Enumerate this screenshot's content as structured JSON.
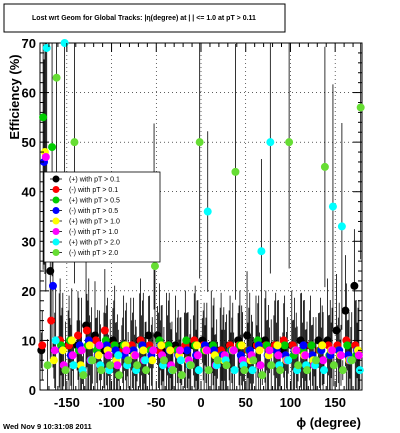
{
  "chart_data": {
    "type": "scatter",
    "title": "Lost wrt Geom for Global Tracks: |η(degree) at | | <= 1.0 at pT > 0.11",
    "xlabel": "ϕ (degree)",
    "ylabel": "Efficiency (%)",
    "xlim": [
      -180,
      180
    ],
    "ylim": [
      0,
      70
    ],
    "xticks": [
      -150,
      -100,
      -50,
      0,
      50,
      100,
      150
    ],
    "yticks": [
      0,
      10,
      20,
      30,
      40,
      50,
      60,
      70
    ],
    "x_tick_labels": [
      "-150",
      "-100",
      "-50",
      "0",
      "50",
      "100",
      "150"
    ],
    "y_tick_labels": [
      "0",
      "10",
      "20",
      "30",
      "40",
      "50",
      "60",
      "70"
    ],
    "grid": true,
    "legend_position": "left",
    "series": [
      {
        "name": "(+) with pT > 0.1",
        "color": "#000000",
        "x": [
          -175,
          -165,
          -155,
          -145,
          -135,
          -125,
          -115,
          -105,
          -95,
          -85,
          -75,
          -65,
          -55,
          -45,
          -35,
          -25,
          -15,
          -5,
          5,
          15,
          25,
          35,
          45,
          55,
          65,
          75,
          85,
          95,
          105,
          115,
          125,
          135,
          145,
          155,
          165,
          175
        ],
        "y": [
          8,
          24,
          10,
          9,
          9,
          13,
          11,
          8,
          10,
          9,
          8,
          10,
          11,
          11,
          8,
          9,
          8,
          9,
          10,
          9,
          8,
          9,
          10,
          11,
          9,
          10,
          9,
          8,
          9,
          10,
          9,
          10,
          10,
          12,
          16,
          21
        ]
      },
      {
        "name": "(-) with pT > 0.1",
        "color": "#ff0000",
        "x": [
          -175,
          -165,
          -155,
          -145,
          -135,
          -125,
          -115,
          -105,
          -95,
          -85,
          -75,
          -65,
          -55,
          -45,
          -35,
          -25,
          -15,
          -5,
          5,
          15,
          25,
          35,
          45,
          55,
          65,
          75,
          85,
          95,
          105,
          115,
          125,
          135,
          145,
          155,
          165,
          175
        ],
        "y": [
          9,
          14,
          10,
          9,
          11,
          12,
          10,
          12,
          9,
          8,
          9,
          10,
          9,
          8,
          9,
          8,
          9,
          10,
          9,
          8,
          8,
          9,
          9,
          8,
          9,
          9,
          9,
          10,
          9,
          8,
          9,
          8,
          9,
          9,
          10,
          9
        ]
      },
      {
        "name": "(+) with pT > 0.5",
        "color": "#00cc00",
        "x": [
          -175,
          -165,
          -155,
          -145,
          -135,
          -125,
          -115,
          -105,
          -95,
          -85,
          -75,
          -65,
          -55,
          -45,
          -35,
          -25,
          -15,
          -5,
          5,
          15,
          25,
          35,
          45,
          55,
          65,
          75,
          85,
          95,
          105,
          115,
          125,
          135,
          145,
          155,
          165,
          175
        ],
        "y": [
          55,
          49,
          9,
          10,
          8,
          9,
          8,
          10,
          9,
          9,
          8,
          9,
          8,
          10,
          9,
          8,
          10,
          9,
          8,
          9,
          7,
          8,
          9,
          8,
          10,
          9,
          8,
          9,
          7,
          8,
          9,
          8,
          7,
          8,
          9,
          7
        ]
      },
      {
        "name": "(-) with pT > 0.5",
        "color": "#0000ff",
        "x": [
          -175,
          -165,
          -155,
          -145,
          -135,
          -125,
          -115,
          -105,
          -95,
          -85,
          -75,
          -65,
          -55,
          -45,
          -35,
          -25,
          -15,
          -5,
          5,
          15,
          25,
          35,
          45,
          55,
          65,
          75,
          85,
          95,
          105,
          115,
          125,
          135,
          145,
          155,
          165,
          175
        ],
        "y": [
          46,
          21,
          8,
          7,
          9,
          10,
          7,
          9,
          8,
          7,
          8,
          9,
          7,
          9,
          8,
          7,
          8,
          7,
          9,
          8,
          7,
          8,
          7,
          8,
          9,
          7,
          8,
          7,
          8,
          9,
          7,
          8,
          7,
          8,
          7,
          8
        ]
      },
      {
        "name": "(+) with pT > 1.0",
        "color": "#ffff00",
        "x": [
          -175,
          -165,
          -155,
          -145,
          -135,
          -125,
          -115,
          -105,
          -95,
          -85,
          -75,
          -65,
          -55,
          -45,
          -35,
          -25,
          -15,
          -5,
          5,
          15,
          25,
          35,
          45,
          55,
          65,
          75,
          85,
          95,
          105,
          115,
          125,
          135,
          145,
          155,
          165,
          175
        ],
        "y": [
          48,
          6,
          8,
          10,
          5,
          9,
          7,
          8,
          6,
          9,
          7,
          8,
          6,
          9,
          8,
          7,
          6,
          9,
          8,
          7,
          6,
          8,
          9,
          6,
          8,
          7,
          9,
          6,
          8,
          7,
          6,
          9,
          8,
          7,
          6,
          8
        ]
      },
      {
        "name": "(-) with pT > 1.0",
        "color": "#ff00ff",
        "x": [
          -175,
          -165,
          -155,
          -145,
          -135,
          -125,
          -115,
          -105,
          -95,
          -85,
          -75,
          -65,
          -55,
          -45,
          -35,
          -25,
          -15,
          -5,
          5,
          15,
          25,
          35,
          45,
          55,
          65,
          75,
          85,
          95,
          105,
          115,
          125,
          135,
          145,
          155,
          165,
          175
        ],
        "y": [
          47,
          8,
          5,
          7,
          8,
          6,
          9,
          7,
          5,
          8,
          7,
          6,
          8,
          7,
          5,
          8,
          6,
          7,
          8,
          5,
          7,
          8,
          6,
          7,
          5,
          8,
          7,
          6,
          8,
          7,
          5,
          6,
          8,
          7,
          6,
          7
        ]
      },
      {
        "name": "(+) with pT > 2.0",
        "color": "#00ffff",
        "x": [
          -175,
          -165,
          -155,
          -145,
          -135,
          -125,
          -115,
          -105,
          -95,
          -85,
          -75,
          -65,
          -55,
          -45,
          -35,
          -25,
          -15,
          -5,
          5,
          15,
          25,
          35,
          45,
          55,
          65,
          75,
          85,
          95,
          105,
          115,
          125,
          135,
          145,
          155,
          165,
          175
        ],
        "y": [
          69,
          10,
          70,
          5,
          4,
          6,
          5,
          4,
          7,
          5,
          4,
          6,
          35,
          5,
          4,
          6,
          5,
          4,
          36,
          5,
          6,
          4,
          5,
          4,
          28,
          50,
          5,
          6,
          4,
          5,
          5,
          4,
          37,
          33,
          6,
          4
        ]
      },
      {
        "name": "(-) with pT > 2.0",
        "color": "#66dd33",
        "x": [
          -175,
          -165,
          -155,
          -145,
          -135,
          -125,
          -115,
          -105,
          -95,
          -85,
          -75,
          -65,
          -55,
          -45,
          -35,
          -25,
          -15,
          -5,
          5,
          15,
          25,
          35,
          45,
          55,
          65,
          75,
          85,
          95,
          105,
          115,
          125,
          135,
          145,
          155,
          165,
          175
        ],
        "y": [
          5,
          63,
          4,
          50,
          3,
          6,
          4,
          5,
          3,
          6,
          5,
          4,
          25,
          6,
          4,
          3,
          5,
          50,
          4,
          6,
          5,
          44,
          4,
          6,
          3,
          5,
          4,
          50,
          5,
          4,
          6,
          45,
          5,
          4,
          6,
          57
        ]
      }
    ]
  },
  "footer": {
    "timestamp": "Wed Nov  9 10:31:08 2011"
  }
}
